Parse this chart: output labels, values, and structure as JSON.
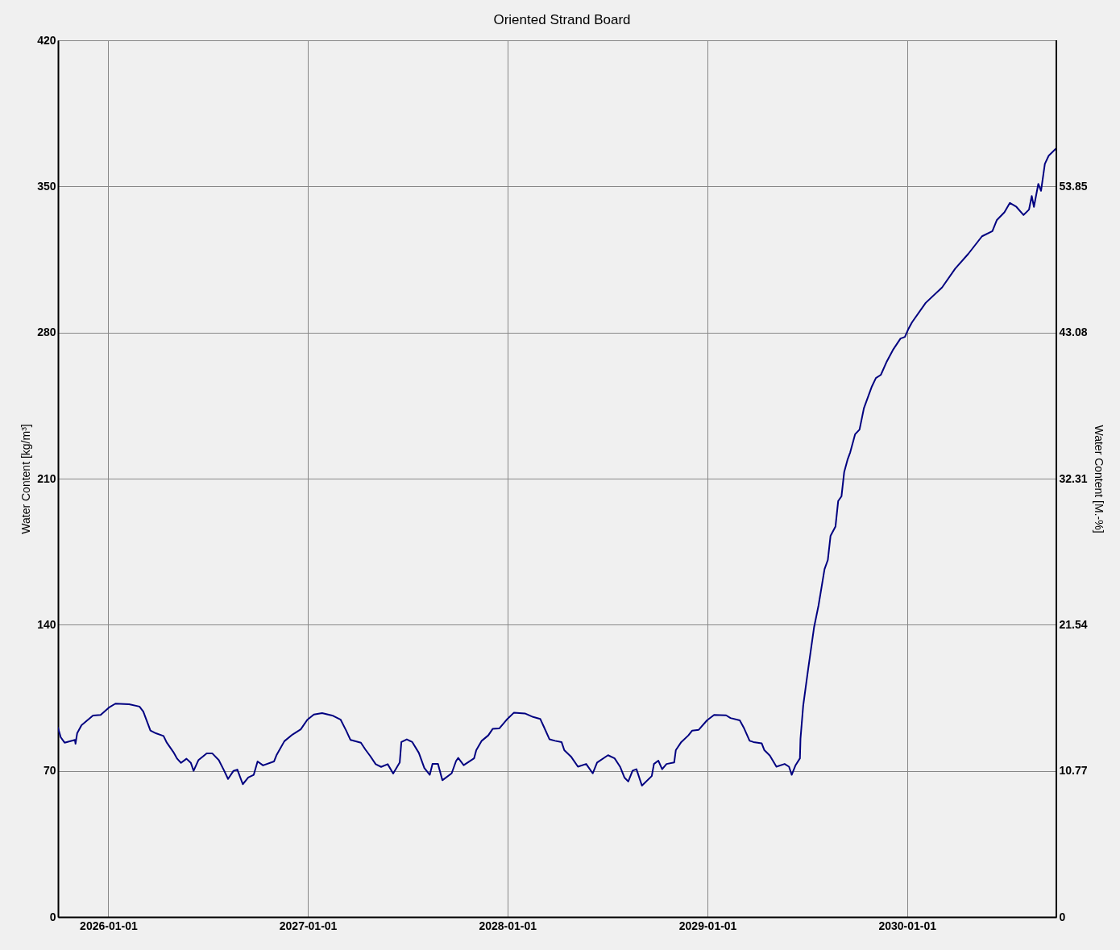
{
  "chart_data": {
    "type": "line",
    "title": "Oriented Strand Board",
    "ylabel": "Water Content [kg/m³]",
    "y2label": "Water Content [M.-%]",
    "x": [
      "2025-10-01",
      "2025-10-06",
      "2025-10-13",
      "2025-11-01",
      "2025-11-02",
      "2025-11-05",
      "2025-11-13",
      "2025-12-04",
      "2025-12-18",
      "2026-01-02",
      "2026-01-14",
      "2026-02-08",
      "2026-02-27",
      "2026-03-06",
      "2026-03-19",
      "2026-03-29",
      "2026-04-12",
      "2026-04-18",
      "2026-04-30",
      "2026-05-07",
      "2026-05-14",
      "2026-05-24",
      "2026-06-01",
      "2026-06-06",
      "2026-06-15",
      "2026-06-30",
      "2026-07-10",
      "2026-07-22",
      "2026-08-01",
      "2026-08-08",
      "2026-08-18",
      "2026-08-25",
      "2026-09-04",
      "2026-09-14",
      "2026-09-24",
      "2026-10-01",
      "2026-10-11",
      "2026-10-31",
      "2026-11-05",
      "2026-11-19",
      "2026-12-04",
      "2026-12-19",
      "2026-12-31",
      "2027-01-12",
      "2027-01-27",
      "2027-02-16",
      "2027-03-02",
      "2027-03-12",
      "2027-03-20",
      "2027-04-08",
      "2027-04-16",
      "2027-04-25",
      "2027-05-05",
      "2027-05-15",
      "2027-05-27",
      "2027-06-06",
      "2027-06-18",
      "2027-06-21",
      "2027-07-01",
      "2027-07-11",
      "2027-07-23",
      "2027-08-02",
      "2027-08-12",
      "2027-08-17",
      "2027-08-27",
      "2027-09-04",
      "2027-09-21",
      "2027-09-29",
      "2027-10-03",
      "2027-10-13",
      "2027-11-01",
      "2027-11-05",
      "2027-11-15",
      "2027-11-27",
      "2027-12-05",
      "2027-12-17",
      "2028-01-01",
      "2028-01-13",
      "2028-02-02",
      "2028-02-17",
      "2028-03-01",
      "2028-03-08",
      "2028-03-18",
      "2028-03-28",
      "2028-04-09",
      "2028-04-14",
      "2028-04-27",
      "2028-05-09",
      "2028-05-24",
      "2028-06-05",
      "2028-06-13",
      "2028-07-03",
      "2028-07-15",
      "2028-07-25",
      "2028-08-02",
      "2028-08-09",
      "2028-08-17",
      "2028-08-24",
      "2028-09-03",
      "2028-09-21",
      "2028-09-25",
      "2028-10-03",
      "2028-10-10",
      "2028-10-18",
      "2028-11-01",
      "2028-11-04",
      "2028-11-14",
      "2028-11-27",
      "2028-12-04",
      "2028-12-16",
      "2028-12-31",
      "2029-01-13",
      "2029-02-04",
      "2029-02-12",
      "2029-03-01",
      "2029-03-09",
      "2029-03-19",
      "2029-03-26",
      "2029-04-10",
      "2029-04-15",
      "2029-04-25",
      "2029-05-07",
      "2029-05-22",
      "2029-05-30",
      "2029-06-04",
      "2029-06-11",
      "2029-06-19",
      "2029-06-20",
      "2029-06-25",
      "2029-07-04",
      "2029-07-15",
      "2029-07-23",
      "2029-08-03",
      "2029-08-09",
      "2029-08-14",
      "2029-08-23",
      "2029-08-28",
      "2029-09-03",
      "2029-09-08",
      "2029-09-14",
      "2029-09-19",
      "2029-09-28",
      "2029-10-06",
      "2029-10-14",
      "2029-10-28",
      "2029-11-05",
      "2029-11-14",
      "2029-11-25",
      "2029-12-06",
      "2029-12-20",
      "2029-12-28",
      "2030-01-03",
      "2030-01-10",
      "2030-02-04",
      "2030-03-06",
      "2030-03-30",
      "2030-04-23",
      "2030-05-18",
      "2030-06-06",
      "2030-06-14",
      "2030-06-28",
      "2030-07-08",
      "2030-07-20",
      "2030-08-02",
      "2030-08-12",
      "2030-08-17",
      "2030-08-21",
      "2030-08-29",
      "2030-09-03",
      "2030-09-10",
      "2030-09-17",
      "2030-10-01"
    ],
    "series": [
      {
        "color": "#000080",
        "values": [
          90.6,
          86.1,
          83.5,
          84.8,
          83.0,
          88.0,
          91.9,
          96.5,
          96.8,
          100.3,
          102.2,
          101.9,
          100.8,
          98.4,
          89.3,
          88.0,
          86.7,
          83.5,
          79.0,
          75.8,
          73.8,
          75.8,
          73.8,
          70.0,
          75.2,
          78.4,
          78.4,
          75.2,
          70.0,
          66.1,
          70.0,
          70.6,
          63.6,
          66.8,
          68.1,
          74.5,
          72.6,
          74.5,
          77.7,
          84.2,
          87.4,
          89.9,
          94.5,
          97.0,
          97.7,
          96.4,
          94.5,
          89.3,
          84.8,
          83.5,
          80.3,
          77.1,
          73.2,
          71.9,
          73.2,
          68.7,
          74.0,
          83.8,
          85.1,
          83.8,
          78.6,
          71.4,
          68.1,
          73.3,
          73.3,
          65.5,
          68.8,
          74.7,
          76.2,
          72.7,
          76.0,
          79.9,
          84.4,
          87.0,
          90.1,
          90.3,
          94.9,
          97.9,
          97.5,
          95.8,
          94.9,
          90.9,
          85.1,
          84.4,
          83.8,
          79.9,
          76.6,
          72.0,
          73.3,
          68.8,
          74.0,
          77.5,
          76.0,
          72.0,
          66.8,
          64.9,
          70.1,
          70.8,
          62.9,
          67.5,
          73.3,
          74.9,
          70.8,
          73.3,
          74.0,
          79.9,
          83.8,
          87.0,
          89.3,
          89.7,
          94.2,
          96.8,
          96.6,
          95.3,
          94.2,
          90.3,
          84.4,
          83.8,
          83.2,
          79.9,
          77.3,
          72.0,
          73.3,
          72.0,
          68.1,
          72.7,
          76.0,
          85.3,
          101.3,
          118.7,
          139.0,
          149.2,
          166.6,
          171.0,
          182.6,
          187.0,
          199.3,
          201.5,
          213.2,
          219.0,
          222.6,
          231.3,
          233.5,
          243.7,
          253.8,
          258.2,
          259.7,
          266.2,
          271.6,
          277.1,
          277.9,
          281.5,
          284.9,
          294.2,
          301.6,
          310.6,
          317.7,
          326.1,
          328.6,
          333.8,
          337.6,
          342.1,
          340.2,
          336.3,
          338.9,
          345.4,
          340.2,
          351.2,
          347.9,
          360.8,
          364.7,
          368.3
        ]
      }
    ],
    "xlim": [
      "2025-10-01",
      "2030-10-01"
    ],
    "xticks": [
      "2026-01-01",
      "2027-01-01",
      "2028-01-01",
      "2029-01-01",
      "2030-01-01"
    ],
    "ylim": [
      0,
      420
    ],
    "yticks": [
      0,
      70,
      140,
      210,
      280,
      350,
      420
    ],
    "y2lim": [
      0,
      64.62
    ],
    "y2ticks": [
      0,
      10.77,
      21.54,
      32.31,
      43.08,
      53.85
    ],
    "grid": true,
    "line_style": "solid"
  }
}
